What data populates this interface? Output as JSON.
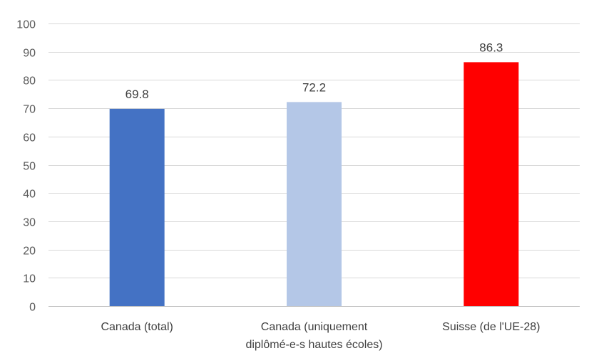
{
  "chart_data": {
    "type": "bar",
    "title": "",
    "xlabel": "",
    "ylabel": "",
    "ylim": [
      0,
      100
    ],
    "ytick_step": 10,
    "grid": true,
    "legend": "none",
    "categories": [
      [
        "Canada (total)"
      ],
      [
        "Canada (uniquement",
        "diplômé-e-s hautes écoles)"
      ],
      [
        "Suisse (de l'UE-28)"
      ]
    ],
    "values": [
      69.8,
      72.2,
      86.3
    ],
    "value_labels": [
      "69.8",
      "72.2",
      "86.3"
    ],
    "colors": [
      "#4472c4",
      "#b4c7e7",
      "#ff0000"
    ]
  }
}
